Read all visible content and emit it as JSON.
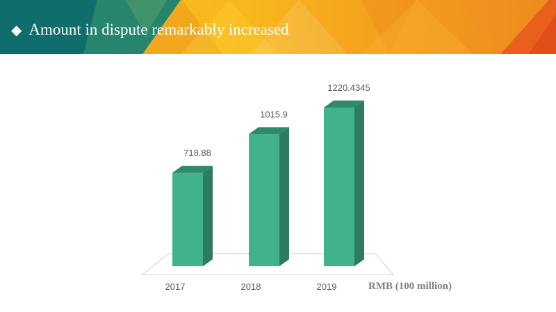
{
  "header": {
    "title": "Amount in dispute remarkably increased",
    "bullet_icon": "diamond-icon",
    "colors": {
      "teal": "#0f6e6b",
      "orange": "#f49a1c",
      "yellow": "#f8c11a"
    }
  },
  "chart_data": {
    "type": "bar",
    "categories": [
      "2017",
      "2018",
      "2019"
    ],
    "values": [
      718.88,
      1015.9,
      1220.4345
    ],
    "value_labels": [
      "718.88",
      "1015.9",
      "1220.4345"
    ],
    "unit_label": "RMB (100 million)",
    "ylim": [
      0,
      1400
    ],
    "grid": false,
    "style": "3d-column",
    "colors": {
      "front": "#41b38b",
      "side": "#2e7b60",
      "top": "#2e8a6a",
      "floor": "#d0d0d0"
    }
  }
}
